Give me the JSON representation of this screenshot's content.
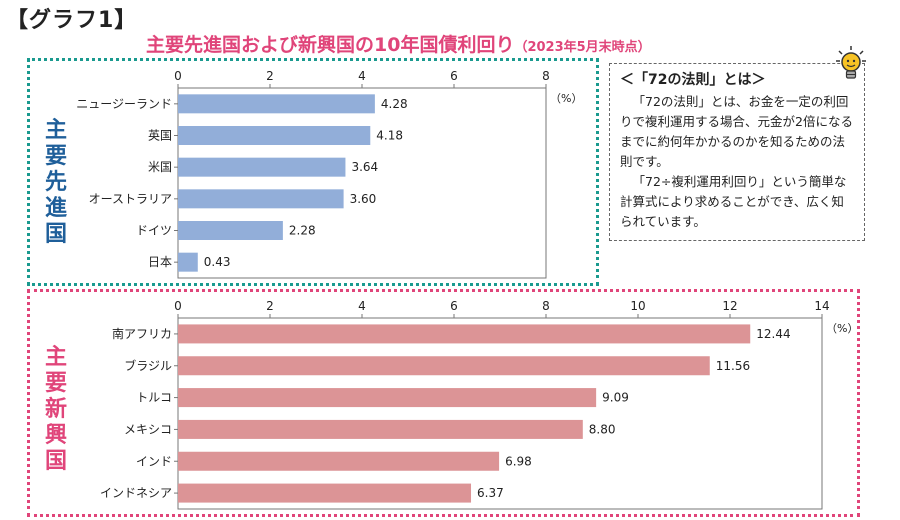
{
  "header": {
    "graph_label": "【グラフ1】",
    "title": "主要先進国および新興国の10年国債利回り",
    "subtitle": "（2023年5月末時点）"
  },
  "panels": {
    "developed_label": "主要先進国",
    "emerging_label": "主要新興国"
  },
  "note": {
    "title": "＜「72の法則」とは＞",
    "paragraph1": "「72の法則」とは、お金を一定の利回りで複利運用する場合、元金が2倍になるまでに約何年かかるのかを知るための法則です。",
    "paragraph2": "「72÷複利運用利回り」という簡単な計算式により求めることができ、広く知られています。",
    "icon": "lightbulb-icon"
  },
  "colors": {
    "developed_bar": "#92aed9",
    "emerging_bar": "#dc9496",
    "developed_border": "#1a9a8f",
    "emerging_border": "#e0457a",
    "title": "#e0457a"
  },
  "chart_data": [
    {
      "type": "bar",
      "orientation": "horizontal",
      "categories": [
        "ニュージーランド",
        "英国",
        "米国",
        "オーストラリア",
        "ドイツ",
        "日本"
      ],
      "values": [
        4.28,
        4.18,
        3.64,
        3.6,
        2.28,
        0.43
      ],
      "value_labels": [
        "4.28",
        "4.18",
        "3.64",
        "3.60",
        "2.28",
        "0.43"
      ],
      "xlim": [
        0,
        8
      ],
      "ticks": [
        0,
        2,
        4,
        6,
        8
      ],
      "unit": "（%）",
      "grid": false
    },
    {
      "type": "bar",
      "orientation": "horizontal",
      "categories": [
        "南アフリカ",
        "ブラジル",
        "トルコ",
        "メキシコ",
        "インド",
        "インドネシア"
      ],
      "values": [
        12.44,
        11.56,
        9.09,
        8.8,
        6.98,
        6.37
      ],
      "value_labels": [
        "12.44",
        "11.56",
        "9.09",
        "8.80",
        "6.98",
        "6.37"
      ],
      "xlim": [
        0,
        14
      ],
      "ticks": [
        0,
        2,
        4,
        6,
        8,
        10,
        12,
        14
      ],
      "unit": "（%）",
      "grid": false
    }
  ]
}
